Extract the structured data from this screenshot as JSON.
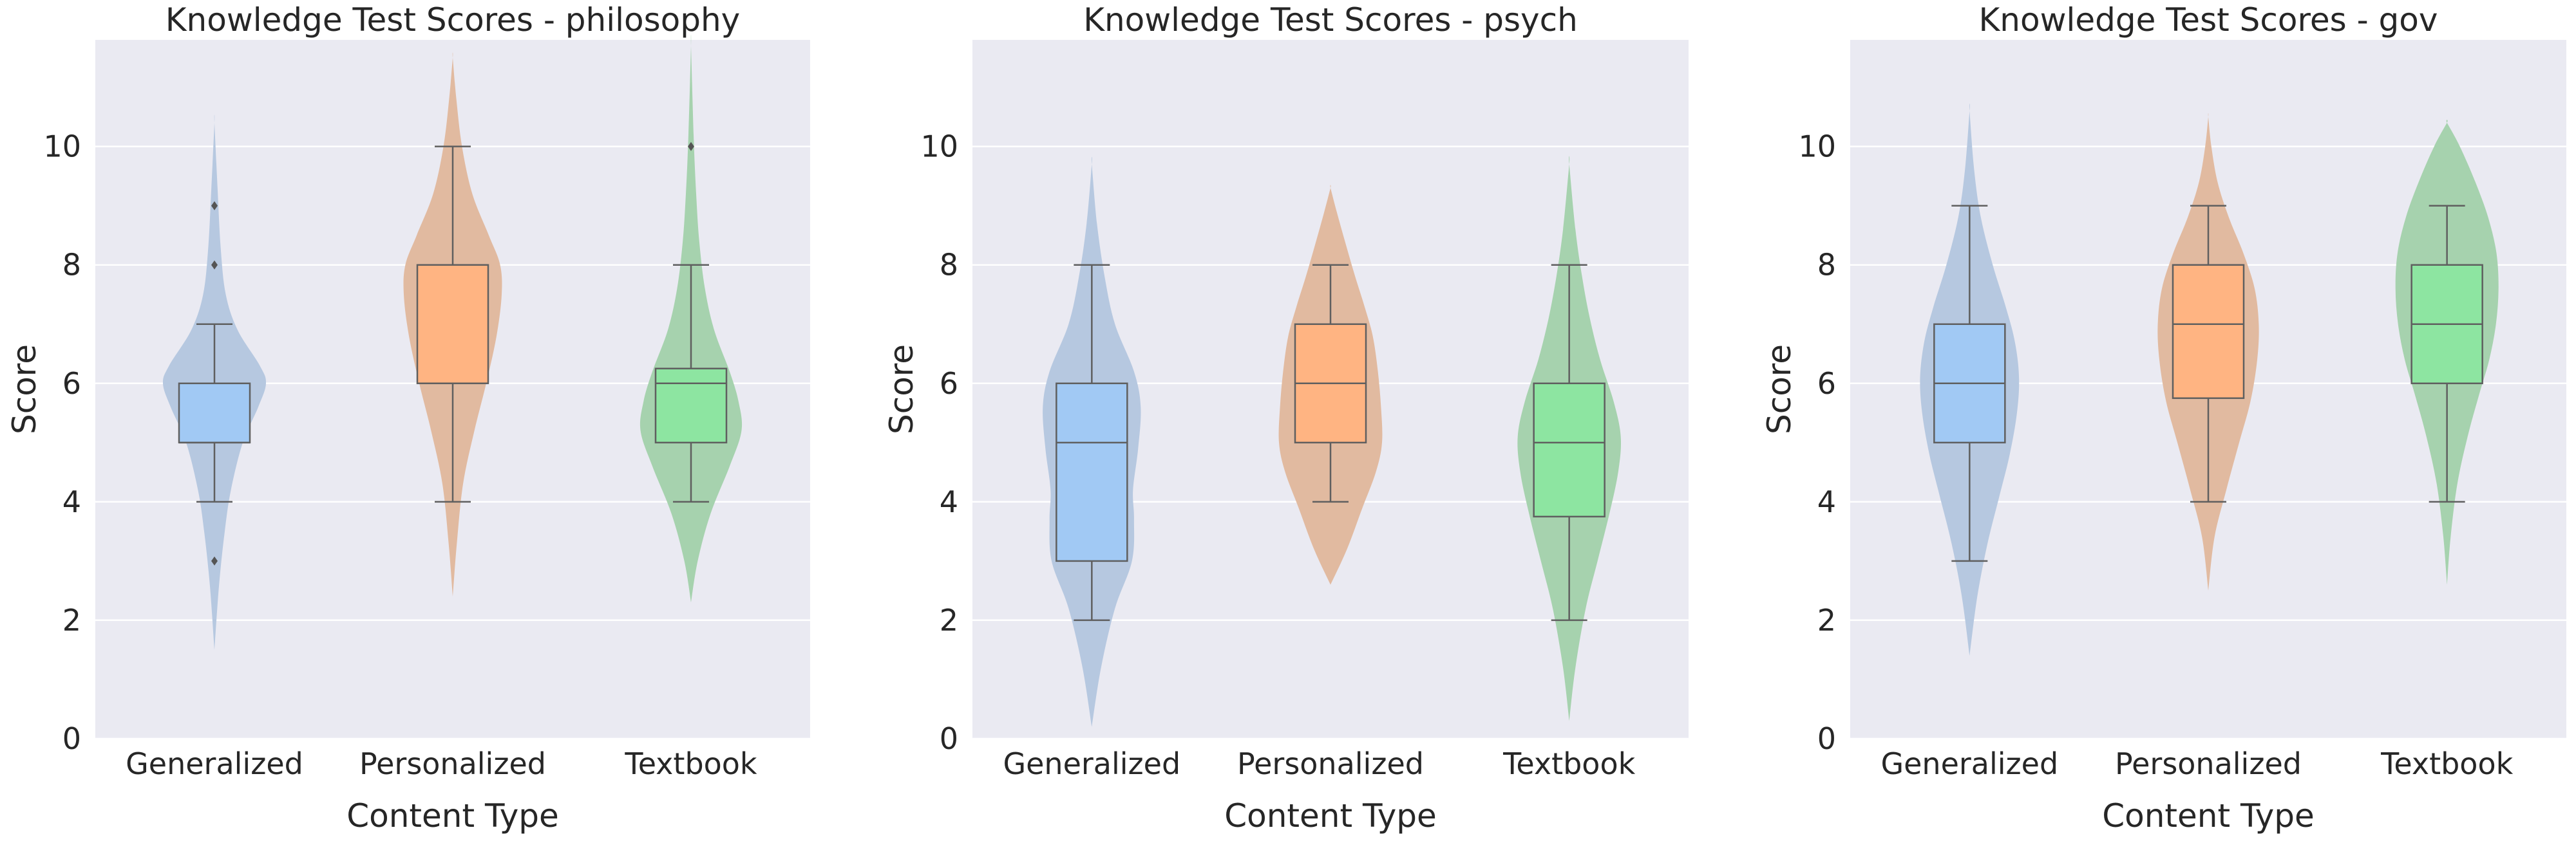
{
  "chart_data": [
    {
      "type": "violin",
      "title": "Knowledge Test Scores - philosophy",
      "xlabel": "Content Type",
      "ylabel": "Score",
      "ylim": [
        0,
        11.8
      ],
      "yticks": [
        0,
        2,
        4,
        6,
        8,
        10
      ],
      "grid": true,
      "categories": [
        "Generalized",
        "Personalized",
        "Textbook"
      ],
      "series": [
        {
          "category": "Generalized",
          "violin_color": "#b6c8e0",
          "box_color": "#a1c9f4",
          "density": {
            "y": [
              1.5,
              2.6,
              3.5,
              4.2,
              5.0,
              5.6,
              6.0,
              6.3,
              6.9,
              7.5,
              8.3,
              9.3,
              10.4
            ],
            "w": [
              0.0,
              0.09,
              0.2,
              0.32,
              0.55,
              0.85,
              1.0,
              0.88,
              0.45,
              0.22,
              0.12,
              0.06,
              0.0
            ]
          },
          "box": {
            "q1": 5,
            "median": 5,
            "q3": 6,
            "whisker_low": 4,
            "whisker_high": 7
          },
          "outliers": [
            3,
            8,
            9
          ]
        },
        {
          "category": "Personalized",
          "violin_color": "#e1baa0",
          "box_color": "#ffb482",
          "density": {
            "y": [
              2.4,
              3.3,
              4.3,
              5.2,
              6.0,
              6.8,
              7.5,
              8.0,
              8.5,
              9.2,
              10.0,
              10.8,
              11.5
            ],
            "w": [
              0.0,
              0.08,
              0.2,
              0.42,
              0.65,
              0.85,
              0.95,
              0.92,
              0.7,
              0.38,
              0.18,
              0.07,
              0.0
            ]
          },
          "box": {
            "q1": 6,
            "median": 6,
            "q3": 8,
            "whisker_low": 4,
            "whisker_high": 10
          },
          "outliers": []
        },
        {
          "category": "Textbook",
          "violin_color": "#a6d2ae",
          "box_color": "#8de5a1",
          "density": {
            "y": [
              2.3,
              3.0,
              3.8,
              4.6,
              5.2,
              5.7,
              6.2,
              6.9,
              7.6,
              8.4,
              9.2,
              10.2,
              11.7
            ],
            "w": [
              0.0,
              0.13,
              0.38,
              0.75,
              0.98,
              0.92,
              0.75,
              0.45,
              0.27,
              0.16,
              0.1,
              0.05,
              0.0
            ]
          },
          "box": {
            "q1": 5,
            "median": 6,
            "q3": 6.25,
            "whisker_low": 4,
            "whisker_high": 8
          },
          "outliers": [
            10
          ]
        }
      ]
    },
    {
      "type": "violin",
      "title": "Knowledge Test Scores - psych",
      "xlabel": "Content Type",
      "ylabel": "Score",
      "ylim": [
        0,
        11.8
      ],
      "yticks": [
        0,
        2,
        4,
        6,
        8,
        10
      ],
      "grid": true,
      "categories": [
        "Generalized",
        "Personalized",
        "Textbook"
      ],
      "series": [
        {
          "category": "Generalized",
          "violin_color": "#b6c8e0",
          "box_color": "#a1c9f4",
          "density": {
            "y": [
              0.2,
              1.2,
              2.2,
              3.0,
              3.7,
              4.2,
              4.9,
              5.6,
              6.2,
              7.0,
              7.8,
              8.7,
              9.7
            ],
            "w": [
              0.0,
              0.18,
              0.45,
              0.78,
              0.82,
              0.8,
              0.9,
              0.95,
              0.82,
              0.45,
              0.25,
              0.1,
              0.0
            ]
          },
          "box": {
            "q1": 3,
            "median": 5,
            "q3": 6,
            "whisker_low": 2,
            "whisker_high": 8
          },
          "outliers": []
        },
        {
          "category": "Personalized",
          "violin_color": "#e1baa0",
          "box_color": "#ffb482",
          "density": {
            "y": [
              2.6,
              3.2,
              3.9,
              4.5,
              5.0,
              5.6,
              6.2,
              6.8,
              7.3,
              7.8,
              8.4,
              8.9,
              9.3
            ],
            "w": [
              0.0,
              0.32,
              0.62,
              0.88,
              1.0,
              0.98,
              0.92,
              0.82,
              0.66,
              0.48,
              0.28,
              0.12,
              0.0
            ]
          },
          "box": {
            "q1": 5,
            "median": 6,
            "q3": 7,
            "whisker_low": 4,
            "whisker_high": 8
          },
          "outliers": []
        },
        {
          "category": "Textbook",
          "violin_color": "#a6d2ae",
          "box_color": "#8de5a1",
          "density": {
            "y": [
              0.3,
              1.2,
              2.2,
              3.0,
              3.8,
              4.5,
              5.1,
              5.7,
              6.4,
              7.1,
              7.8,
              8.6,
              9.7
            ],
            "w": [
              0.0,
              0.12,
              0.32,
              0.55,
              0.78,
              0.95,
              1.0,
              0.86,
              0.6,
              0.4,
              0.25,
              0.12,
              0.0
            ]
          },
          "box": {
            "q1": 3.75,
            "median": 5,
            "q3": 6,
            "whisker_low": 2,
            "whisker_high": 8
          },
          "outliers": []
        }
      ]
    },
    {
      "type": "violin",
      "title": "Knowledge Test Scores - gov",
      "xlabel": "Content Type",
      "ylabel": "Score",
      "ylim": [
        0,
        11.8
      ],
      "yticks": [
        0,
        2,
        4,
        6,
        8,
        10
      ],
      "grid": true,
      "categories": [
        "Generalized",
        "Personalized",
        "Textbook"
      ],
      "series": [
        {
          "category": "Generalized",
          "violin_color": "#b6c8e0",
          "box_color": "#a1c9f4",
          "density": {
            "y": [
              1.4,
              2.4,
              3.3,
              4.1,
              4.8,
              5.5,
              6.1,
              6.7,
              7.3,
              8.0,
              8.8,
              9.6,
              10.6
            ],
            "w": [
              0.0,
              0.15,
              0.35,
              0.58,
              0.78,
              0.92,
              0.96,
              0.88,
              0.7,
              0.45,
              0.22,
              0.09,
              0.0
            ]
          },
          "box": {
            "q1": 5,
            "median": 6,
            "q3": 7,
            "whisker_low": 3,
            "whisker_high": 9
          },
          "outliers": []
        },
        {
          "category": "Personalized",
          "violin_color": "#e1baa0",
          "box_color": "#ffb482",
          "density": {
            "y": [
              2.5,
              3.4,
              4.2,
              5.0,
              5.7,
              6.4,
              7.0,
              7.6,
              8.2,
              8.8,
              9.4,
              10.0,
              10.5
            ],
            "w": [
              0.0,
              0.12,
              0.35,
              0.6,
              0.82,
              0.95,
              0.98,
              0.9,
              0.68,
              0.4,
              0.18,
              0.06,
              0.0
            ]
          },
          "box": {
            "q1": 5.75,
            "median": 7,
            "q3": 8,
            "whisker_low": 4,
            "whisker_high": 9
          },
          "outliers": []
        },
        {
          "category": "Textbook",
          "violin_color": "#a6d2ae",
          "box_color": "#8de5a1",
          "density": {
            "y": [
              2.6,
              3.4,
              4.3,
              5.1,
              5.8,
              6.4,
              7.0,
              7.6,
              8.2,
              8.8,
              9.4,
              10.0,
              10.4
            ],
            "w": [
              0.0,
              0.07,
              0.2,
              0.4,
              0.62,
              0.82,
              0.95,
              1.0,
              0.96,
              0.8,
              0.55,
              0.25,
              0.0
            ]
          },
          "box": {
            "q1": 6,
            "median": 7,
            "q3": 8,
            "whisker_low": 4,
            "whisker_high": 9
          },
          "outliers": []
        }
      ]
    }
  ]
}
